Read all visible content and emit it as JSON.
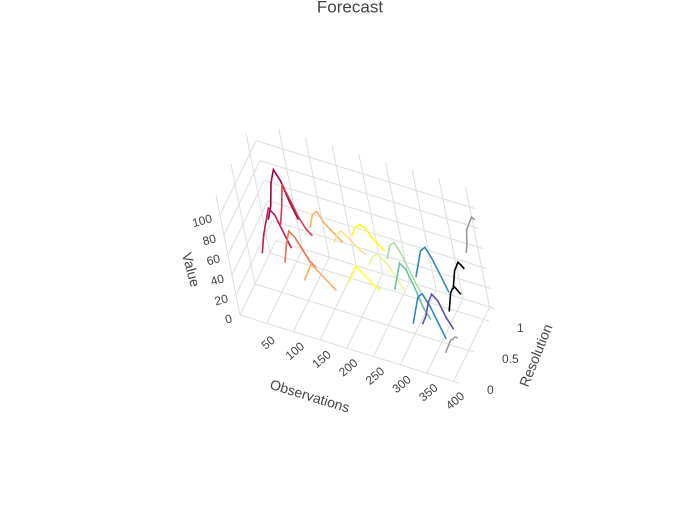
{
  "chart_data": {
    "type": "line3d",
    "title": "Forecast",
    "x_label": "Observations",
    "y_label": "Resolution",
    "z_label": "Value",
    "xlim": [
      0,
      410
    ],
    "ylim": [
      0,
      1.2
    ],
    "zlim": [
      0,
      120
    ],
    "xticks": [
      50,
      100,
      150,
      200,
      250,
      300,
      350,
      400
    ],
    "yticks": [
      0,
      0.5,
      1
    ],
    "zticks": [
      0,
      20,
      40,
      60,
      80,
      100
    ],
    "grid": true,
    "series": [
      {
        "color": "#9e0142",
        "y": 1.0,
        "x": [
          10,
          20,
          30,
          40,
          50,
          60,
          70
        ],
        "z": [
          35,
          50,
          75,
          90,
          80,
          60,
          45
        ]
      },
      {
        "color": "#c2185b",
        "y": 0.7,
        "x": [
          10,
          20,
          30,
          40,
          50,
          60,
          70
        ],
        "z": [
          20,
          40,
          55,
          70,
          65,
          50,
          35
        ]
      },
      {
        "color": "#d53e4f",
        "y": 0.9,
        "x": [
          40,
          50,
          60,
          70,
          80,
          90,
          100
        ],
        "z": [
          40,
          60,
          85,
          70,
          55,
          45,
          40
        ]
      },
      {
        "color": "#f46d43",
        "y": 0.6,
        "x": [
          60,
          70,
          80,
          90,
          100,
          110,
          120
        ],
        "z": [
          25,
          45,
          60,
          55,
          45,
          35,
          30
        ]
      },
      {
        "color": "#fdae61",
        "y": 1.0,
        "x": [
          90,
          100,
          110,
          120,
          130,
          140,
          150
        ],
        "z": [
          40,
          55,
          60,
          50,
          45,
          40,
          35
        ]
      },
      {
        "color": "#fdae61",
        "y": 0.5,
        "x": [
          100,
          110,
          120,
          130,
          140,
          150,
          160
        ],
        "z": [
          20,
          30,
          40,
          35,
          30,
          25,
          20
        ]
      },
      {
        "color": "#fee08b",
        "y": 0.9,
        "x": [
          140,
          150,
          160,
          170,
          180,
          190,
          200
        ],
        "z": [
          40,
          50,
          55,
          50,
          45,
          40,
          38
        ]
      },
      {
        "color": "#ffff00",
        "y": 1.0,
        "x": [
          170,
          180,
          190,
          200,
          210,
          220,
          230
        ],
        "z": [
          45,
          55,
          60,
          58,
          50,
          45,
          40
        ]
      },
      {
        "color": "#ffff33",
        "y": 0.6,
        "x": [
          180,
          190,
          200,
          210,
          220,
          230,
          240
        ],
        "z": [
          25,
          35,
          45,
          40,
          35,
          30,
          28
        ]
      },
      {
        "color": "#e6f598",
        "y": 0.8,
        "x": [
          210,
          220,
          230,
          240,
          250,
          260,
          270
        ],
        "z": [
          35,
          45,
          50,
          45,
          40,
          30,
          20
        ]
      },
      {
        "color": "#abdda4",
        "y": 0.9,
        "x": [
          240,
          250,
          260,
          270,
          280,
          290,
          300
        ],
        "z": [
          40,
          55,
          60,
          50,
          35,
          20,
          10
        ]
      },
      {
        "color": "#66c2a5",
        "y": 0.7,
        "x": [
          260,
          270,
          280,
          290,
          300,
          310,
          320
        ],
        "z": [
          25,
          40,
          55,
          50,
          35,
          15,
          5
        ]
      },
      {
        "color": "#3288bd",
        "y": 0.9,
        "x": [
          290,
          300,
          310,
          320,
          330,
          340,
          350
        ],
        "z": [
          30,
          45,
          60,
          65,
          55,
          40,
          25
        ]
      },
      {
        "color": "#3288bd",
        "y": 0.5,
        "x": [
          300,
          310,
          320,
          330,
          340,
          350,
          360
        ],
        "z": [
          10,
          25,
          40,
          45,
          35,
          20,
          5
        ]
      },
      {
        "color": "#5e4fa2",
        "y": 0.6,
        "x": [
          310,
          320,
          330,
          340,
          350,
          360,
          370
        ],
        "z": [
          5,
          15,
          30,
          40,
          35,
          20,
          10
        ]
      },
      {
        "color": "#999999",
        "y": 1.2,
        "x": [
          375,
          380,
          385,
          390,
          395,
          400,
          405
        ],
        "z": [
          50,
          60,
          75,
          80,
          85,
          90,
          88
        ]
      },
      {
        "color": "#999999",
        "y": 0.3,
        "x": [
          370,
          375,
          380,
          385,
          390,
          395,
          400
        ],
        "z": [
          5,
          10,
          15,
          20,
          22,
          25,
          25
        ]
      },
      {
        "color": "#000000",
        "y": 0.9,
        "x": [
          360,
          365,
          370,
          375,
          380,
          385,
          390
        ],
        "z": [
          30,
          40,
          50,
          55,
          60,
          58,
          55
        ]
      },
      {
        "color": "#000000",
        "y": 0.7,
        "x": [
          360,
          365,
          370,
          375,
          380,
          385,
          390
        ],
        "z": [
          20,
          30,
          40,
          45,
          48,
          45,
          42
        ]
      }
    ]
  }
}
